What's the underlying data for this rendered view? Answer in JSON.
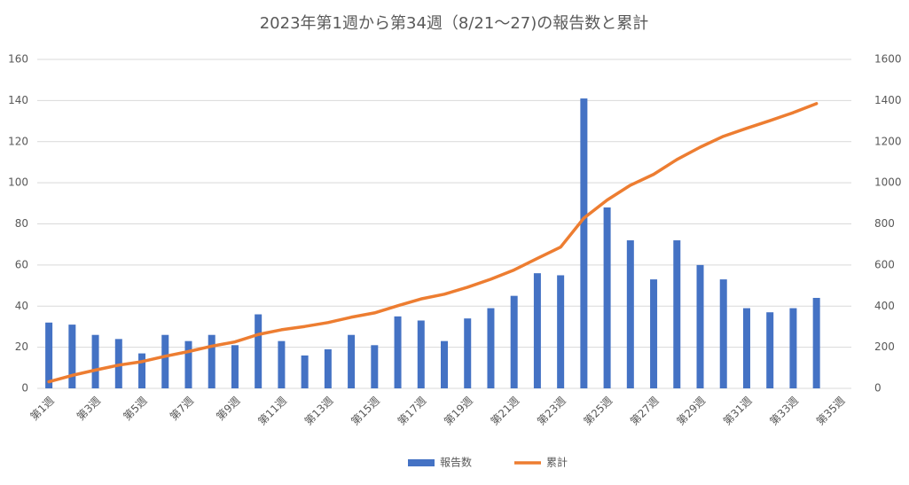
{
  "chart_data": {
    "type": "bar_line",
    "title": "2023年第1週から第34週（8/21～27)の報告数と累計",
    "categories": [
      "第1週",
      null,
      "第3週",
      null,
      "第5週",
      null,
      "第7週",
      null,
      "第9週",
      null,
      "第11週",
      null,
      "第13週",
      null,
      "第15週",
      null,
      "第17週",
      null,
      "第19週",
      null,
      "第21週",
      null,
      "第23週",
      null,
      "第25週",
      null,
      "第27週",
      null,
      "第29週",
      null,
      "第31週",
      null,
      "第33週",
      null,
      "第35週"
    ],
    "series": [
      {
        "name": "報告数",
        "type": "bar",
        "color": "#4472c4",
        "values": [
          32,
          31,
          26,
          24,
          17,
          26,
          23,
          26,
          21,
          36,
          23,
          16,
          19,
          26,
          21,
          35,
          33,
          23,
          34,
          39,
          45,
          56,
          55,
          141,
          88,
          72,
          53,
          72,
          60,
          53,
          39,
          37,
          39,
          44,
          null
        ]
      },
      {
        "name": "累計",
        "type": "line",
        "axis": "y2",
        "color": "#ed7d31",
        "values": [
          32,
          63,
          89,
          113,
          130,
          156,
          179,
          205,
          226,
          262,
          285,
          301,
          320,
          346,
          367,
          402,
          435,
          458,
          492,
          531,
          576,
          632,
          687,
          828,
          916,
          988,
          1041,
          1113,
          1173,
          1226,
          1265,
          1302,
          1341,
          1385,
          null
        ]
      }
    ],
    "ylim": [
      0,
      160
    ],
    "yticks": [
      0,
      20,
      40,
      60,
      80,
      100,
      120,
      140,
      160
    ],
    "y2lim": [
      0,
      1600
    ],
    "y2ticks": [
      0,
      200,
      400,
      600,
      800,
      1000,
      1200,
      1400,
      1600
    ],
    "grid": true,
    "legend": "bottom"
  }
}
